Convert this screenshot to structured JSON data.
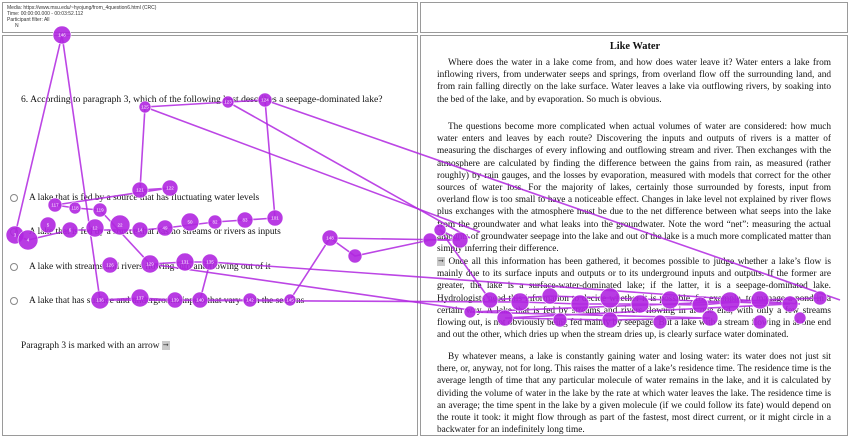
{
  "meta": {
    "media_line": "Media: https://www.msu.edu/~hyojung/from_4question6.html (CRC)",
    "time_line": "Time: 00:00:00.000 - 00:03:52.112",
    "participant_line": "Participant filter: All",
    "marker": "N"
  },
  "question": {
    "text": "6. According to paragraph 3, which of the following best describes a seepage-dominated lake?",
    "options": [
      "A lake that is fed by a source that has fluctuating water levels",
      "A lake that is fed by a source that has no streams or rivers as inputs",
      "A lake with streams and rivers flowing into and flowing out of it",
      "A lake that has surface and underground inputs that vary with the seasons"
    ],
    "paragraph_note": "Paragraph 3 is marked with an arrow",
    "arrow_glyph": "➞"
  },
  "passage": {
    "title": "Like Water",
    "para1": "Where does the water in a lake come from, and how does water leave it? Water enters a lake from inflowing rivers, from underwater seeps and springs, from overland flow off the surrounding land, and from rain falling directly on the lake surface. Water leaves a lake via outflowing rivers, by soaking into the bed of the lake, and by evaporation. So much is obvious.",
    "para2": "The questions become more complicated when actual volumes of water are considered: how much water enters and leaves by each route? Discovering the inputs and outputs of rivers is a matter of measuring the discharges of every inflowing and outflowing stream and river. Then exchanges with the atmosphere are calculated by finding the difference between the gains from rain, as measured (rather roughly) by rain gauges, and the losses by evaporation, measured with models that correct for the other sources of water loss. For the majority of lakes, certainly those surrounded by forests, input from overland flow is too small to have a noticeable effect. Changes in lake level not explained by river flows plus exchanges with the atmosphere must be due to the net difference between what seeps into the lake from the groundwater and what leaks into the groundwater. Note the word “net”: measuring the actual amounts of groundwater seepage into the lake and out of the lake is a much more complicated matter than simply inferring their difference.",
    "para3_arrow": "➞",
    "para3": "Once all this information has been gathered, it becomes possible to judge whether a lake’s flow is mainly due to its surface inputs and outputs or to its underground inputs and outputs. If the former are greater, the lake is a surface-water-dominated lake; if the latter, it is a seepage-dominated lake. Hydrologists need this information to decide whether it is possible, for example, to manage a pond in a certain way. A lake that is fed by streams and rivers flowing in at one end, with only a few streams flowing out, is not obviously being fed mainly by seepage. But a lake with a stream flowing in at one end and out the other, which dries up when the stream dries up, is clearly surface water dominated.",
    "para4": "By whatever means, a lake is constantly gaining water and losing water: its water does not just sit there, or, anyway, not for long. This raises the matter of a lake’s residence time. The residence time is the average length of time that any particular molecule of water remains in the lake, and it is calculated by dividing the volume of water in the lake by the rate at which water leaves the lake. The residence time is an average; the time spent in the lake by a given molecule (if we could follow its fate) would depend on the route it took: it might flow through as part of the fastest, most direct current, or it might circle in a backwater for an indefinitely long time."
  },
  "gaze_overlay": {
    "color": "#b026e0",
    "fixation_labels": [
      "146",
      "3",
      "4",
      "5",
      "6",
      "12",
      "14",
      "22",
      "49",
      "50",
      "82",
      "83",
      "101",
      "117",
      "118",
      "119",
      "121",
      "122",
      "123",
      "124",
      "125",
      "126",
      "129",
      "131",
      "135",
      "136",
      "137",
      "139",
      "140",
      "142",
      "145",
      "148"
    ]
  }
}
